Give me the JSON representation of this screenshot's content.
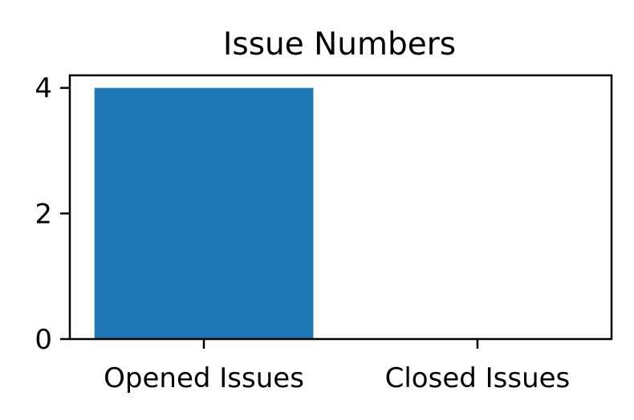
{
  "chart_data": {
    "type": "bar",
    "title": "Issue Numbers",
    "categories": [
      "Opened Issues",
      "Closed Issues"
    ],
    "values": [
      4,
      0
    ],
    "yticks": [
      0,
      2,
      4
    ],
    "ylim": [
      0,
      4.2
    ],
    "xlabel": "",
    "ylabel": "",
    "bar_color": "#1f77b4",
    "grid": false
  }
}
